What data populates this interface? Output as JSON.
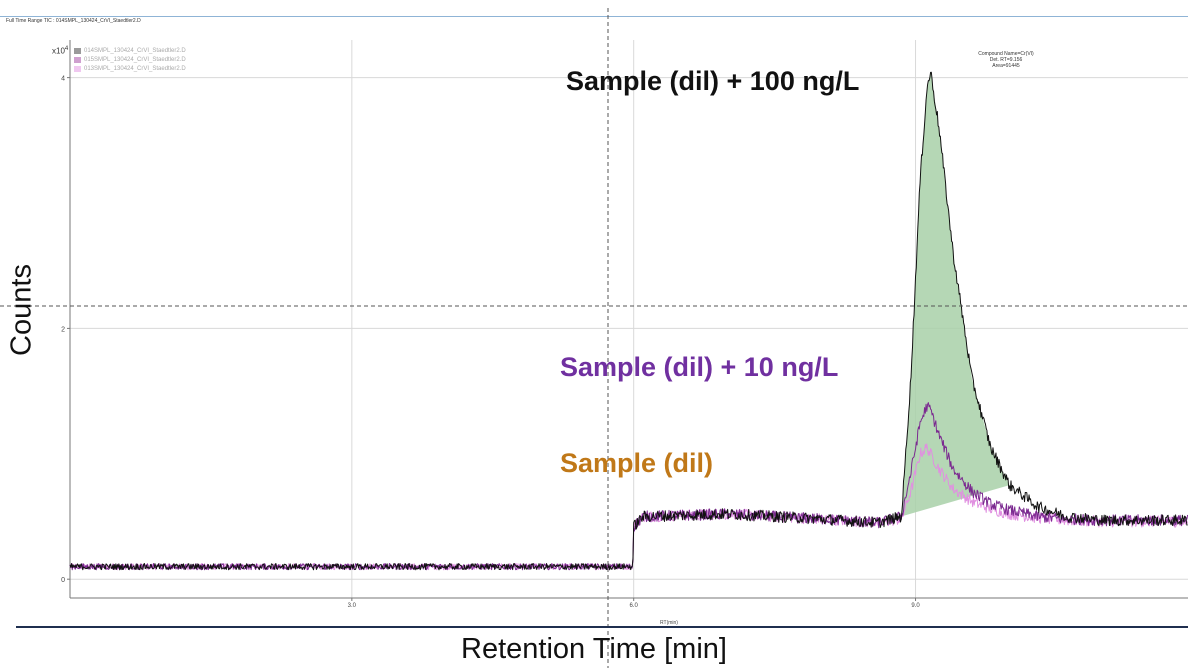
{
  "header": {
    "text": "Full Time Range TIC : 014SMPL_130424_CrVI_Staedtler2.D"
  },
  "ylabel": "Counts",
  "xlabel": "Retention Time [min]",
  "y_multiplier": "x10",
  "y_exponent": "4",
  "x_axis_unit": "RT(min)",
  "legend": [
    {
      "label": "014SMPL_130424_CrVI_Staedtler2.D",
      "color": "#9a9a9a"
    },
    {
      "label": "015SMPL_130424_CrVI_Staedtler2.D",
      "color": "#cfa0cf"
    },
    {
      "label": "013SMPL_130424_CrVI_Staedtler2.D",
      "color": "#f0c8f0"
    }
  ],
  "annotations": {
    "s100": "Sample (dil) + 100 ng/L",
    "s10": "Sample (dil) + 10 ng/L",
    "sdil": "Sample (dil)"
  },
  "peak_label": {
    "line1": "Compound Name=Cr(VI)",
    "line2": "Det. RT=9.156",
    "line3": "Area=91445"
  },
  "colors": {
    "fill": "#a8d0a8",
    "black": "#111111",
    "purple": "#7b2a90",
    "pink": "#e090e0",
    "grid": "#d8d8d8"
  },
  "chart_data": {
    "type": "line",
    "xlabel": "Retention Time [min]",
    "ylabel": "Counts",
    "x_ticks": [
      "3.0",
      "6.0",
      "9.0"
    ],
    "x_tick_values": [
      3.0,
      6.0,
      9.0
    ],
    "y_ticks": [
      "0",
      "2",
      "4"
    ],
    "y_tick_values": [
      0,
      2,
      4
    ],
    "y_scale": "x10^4",
    "xlim": [
      0,
      11.9
    ],
    "ylim": [
      -0.15,
      4.3
    ],
    "grid": true,
    "series": [
      {
        "name": "014SMPL_130424_CrVI_Staedtler2.D",
        "x": [
          0,
          5.99,
          6.0,
          6.1,
          7.0,
          8.0,
          8.6,
          8.85,
          8.95,
          9.05,
          9.12,
          9.16,
          9.25,
          9.4,
          9.6,
          9.8,
          10.0,
          10.3,
          10.6,
          11.0,
          11.9
        ],
        "y": [
          0.1,
          0.1,
          0.42,
          0.5,
          0.52,
          0.48,
          0.45,
          0.5,
          1.6,
          3.2,
          3.9,
          4.05,
          3.6,
          2.6,
          1.6,
          1.05,
          0.75,
          0.58,
          0.5,
          0.47,
          0.47
        ]
      },
      {
        "name": "015SMPL_130424_CrVI_Staedtler2.D",
        "x": [
          0,
          5.99,
          6.0,
          6.1,
          7.0,
          8.0,
          8.6,
          8.85,
          8.95,
          9.05,
          9.12,
          9.16,
          9.25,
          9.4,
          9.6,
          9.8,
          10.0,
          10.3,
          10.6,
          11.0,
          11.9
        ],
        "y": [
          0.1,
          0.1,
          0.42,
          0.5,
          0.52,
          0.48,
          0.45,
          0.5,
          0.85,
          1.25,
          1.38,
          1.35,
          1.15,
          0.88,
          0.7,
          0.6,
          0.55,
          0.5,
          0.48,
          0.47,
          0.47
        ]
      },
      {
        "name": "013SMPL_130424_CrVI_Staedtler2.D",
        "x": [
          0,
          5.99,
          6.0,
          6.1,
          7.0,
          8.0,
          8.6,
          8.85,
          8.95,
          9.05,
          9.12,
          9.16,
          9.25,
          9.4,
          9.6,
          9.8,
          10.0,
          10.3,
          10.6,
          11.0,
          11.9
        ],
        "y": [
          0.1,
          0.1,
          0.42,
          0.5,
          0.52,
          0.48,
          0.45,
          0.48,
          0.7,
          1.0,
          1.05,
          1.0,
          0.88,
          0.72,
          0.62,
          0.56,
          0.52,
          0.49,
          0.47,
          0.46,
          0.46
        ]
      }
    ],
    "peak": {
      "compound": "Cr(VI)",
      "rt": 9.156,
      "area": 91445,
      "integration_start": 8.8,
      "integration_end": 10.0
    }
  }
}
